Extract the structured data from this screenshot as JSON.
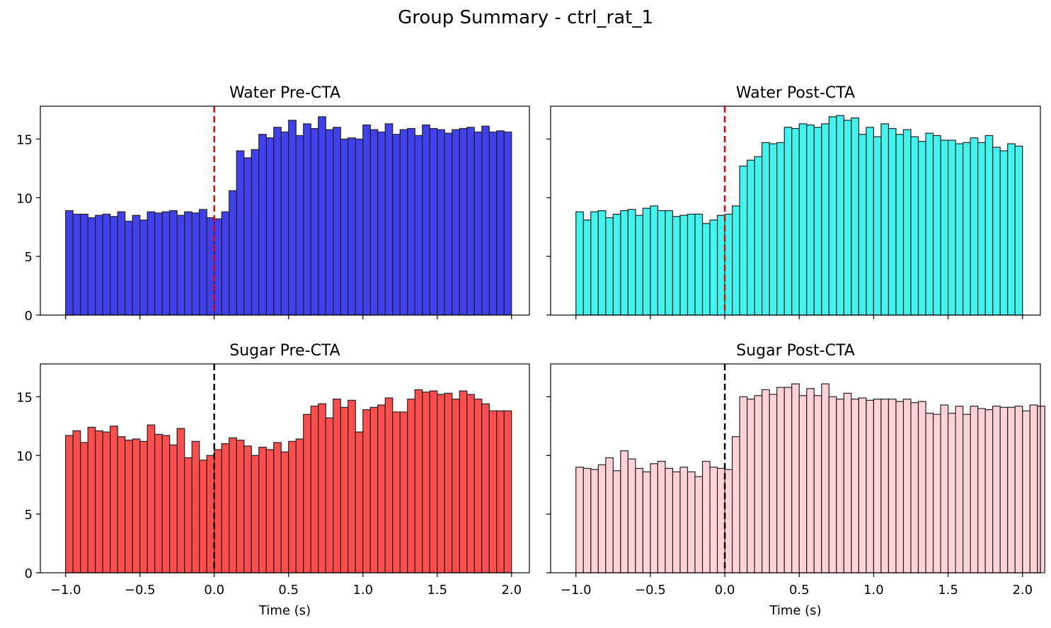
{
  "figure": {
    "title": "Group Summary - ctrl_rat_1"
  },
  "chart_data": [
    {
      "type": "bar",
      "title": "Water Pre-CTA",
      "xlabel": "",
      "ylabel": "",
      "bin_start": -1.0,
      "bin_width": 0.05,
      "values": [
        8.9,
        8.6,
        8.6,
        8.3,
        8.5,
        8.6,
        8.4,
        8.8,
        8.0,
        8.5,
        8.1,
        8.8,
        8.7,
        8.8,
        8.9,
        8.5,
        8.8,
        8.7,
        9.0,
        8.3,
        8.2,
        8.8,
        10.6,
        14.0,
        13.4,
        14.1,
        15.4,
        15.1,
        16.0,
        15.6,
        16.6,
        15.3,
        16.3,
        15.9,
        16.9,
        15.8,
        16.0,
        15.0,
        15.1,
        15.0,
        16.2,
        15.8,
        15.6,
        16.3,
        15.4,
        15.8,
        15.9,
        15.3,
        16.2,
        15.9,
        15.8,
        15.5,
        15.8,
        15.9,
        16.0,
        15.6,
        16.1,
        15.6,
        15.7,
        15.6
      ],
      "color": "#4040ee",
      "stimulus_line": {
        "x": 0.0,
        "color": "#ee0000"
      },
      "xlim": [
        -1.17,
        2.12
      ],
      "ylim": [
        0,
        17.8
      ],
      "x_ticks": [
        "−1.0",
        "−0.5",
        "0.0",
        "0.5",
        "1.0",
        "1.5",
        "2.0"
      ],
      "x_tick_values": [
        -1.0,
        -0.5,
        0.0,
        0.5,
        1.0,
        1.5,
        2.0
      ],
      "show_x_tick_labels": false,
      "y_ticks": [
        "0",
        "5",
        "10",
        "15"
      ],
      "y_tick_values": [
        0,
        5,
        10,
        15
      ],
      "show_y_tick_labels": true
    },
    {
      "type": "bar",
      "title": "Water Post-CTA",
      "xlabel": "",
      "ylabel": "",
      "bin_start": -1.0,
      "bin_width": 0.05,
      "values": [
        8.8,
        8.1,
        8.8,
        8.9,
        8.3,
        8.6,
        8.9,
        9.0,
        8.5,
        9.1,
        9.3,
        8.9,
        8.9,
        8.4,
        8.5,
        8.6,
        8.6,
        7.8,
        8.1,
        8.5,
        8.6,
        9.3,
        12.7,
        13.2,
        13.5,
        14.7,
        14.6,
        14.7,
        16.0,
        15.9,
        16.3,
        16.2,
        16.0,
        16.3,
        16.9,
        17.0,
        16.6,
        16.8,
        15.4,
        16.0,
        15.2,
        16.3,
        15.9,
        15.4,
        15.8,
        15.2,
        14.8,
        15.5,
        15.3,
        14.9,
        14.9,
        14.6,
        14.7,
        15.1,
        14.7,
        15.3,
        14.3,
        14.0,
        14.6,
        14.4
      ],
      "color": "#40f5ee",
      "stimulus_line": {
        "x": 0.0,
        "color": "#ee0000"
      },
      "xlim": [
        -1.17,
        2.12
      ],
      "ylim": [
        0,
        17.8
      ],
      "x_ticks": [
        "−1.0",
        "−0.5",
        "0.0",
        "0.5",
        "1.0",
        "1.5",
        "2.0"
      ],
      "x_tick_values": [
        -1.0,
        -0.5,
        0.0,
        0.5,
        1.0,
        1.5,
        2.0
      ],
      "show_x_tick_labels": false,
      "y_ticks": [
        "0",
        "5",
        "10",
        "15"
      ],
      "y_tick_values": [
        0,
        5,
        10,
        15
      ],
      "show_y_tick_labels": false
    },
    {
      "type": "bar",
      "title": "Sugar Pre-CTA",
      "xlabel": "Time (s)",
      "ylabel": "",
      "bin_start": -1.0,
      "bin_width": 0.05,
      "values": [
        11.7,
        12.1,
        11.1,
        12.4,
        12.1,
        12.0,
        12.5,
        11.6,
        11.3,
        11.4,
        11.2,
        12.6,
        11.8,
        11.7,
        10.9,
        12.3,
        9.8,
        11.2,
        9.6,
        10.0,
        10.5,
        11.0,
        11.5,
        11.3,
        10.8,
        10.0,
        10.7,
        10.5,
        11.1,
        10.3,
        11.2,
        11.4,
        13.5,
        14.2,
        14.4,
        13.2,
        14.8,
        14.1,
        14.7,
        12.0,
        13.9,
        14.1,
        14.3,
        14.9,
        13.7,
        13.7,
        14.8,
        15.6,
        15.4,
        15.5,
        15.2,
        15.3,
        14.8,
        15.5,
        15.2,
        14.8,
        14.4,
        13.8,
        13.8,
        13.8
      ],
      "color": "#fd4d4d",
      "stimulus_line": {
        "x": 0.0,
        "color": "#000000"
      },
      "xlim": [
        -1.17,
        2.12
      ],
      "ylim": [
        0,
        17.8
      ],
      "x_ticks": [
        "−1.0",
        "−0.5",
        "0.0",
        "0.5",
        "1.0",
        "1.5",
        "2.0"
      ],
      "x_tick_values": [
        -1.0,
        -0.5,
        0.0,
        0.5,
        1.0,
        1.5,
        2.0
      ],
      "show_x_tick_labels": true,
      "y_ticks": [
        "0",
        "5",
        "10",
        "15"
      ],
      "y_tick_values": [
        0,
        5,
        10,
        15
      ],
      "show_y_tick_labels": true
    },
    {
      "type": "bar",
      "title": "Sugar Post-CTA",
      "xlabel": "Time (s)",
      "ylabel": "",
      "bin_start": -1.0,
      "bin_width": 0.05,
      "values": [
        9.0,
        8.9,
        8.8,
        9.2,
        9.8,
        8.7,
        10.4,
        9.7,
        8.9,
        8.6,
        9.3,
        9.5,
        8.9,
        8.6,
        9.0,
        8.6,
        8.2,
        9.5,
        9.0,
        8.9,
        8.8,
        11.6,
        15.0,
        14.8,
        15.1,
        15.6,
        15.2,
        15.8,
        15.8,
        16.1,
        15.1,
        15.7,
        15.1,
        16.1,
        15.0,
        14.8,
        15.3,
        14.8,
        14.9,
        14.7,
        14.8,
        14.8,
        14.8,
        14.6,
        14.8,
        14.5,
        14.6,
        13.6,
        13.5,
        14.3,
        13.6,
        14.2,
        13.5,
        14.2,
        14.0,
        13.9,
        14.2,
        14.1,
        14.1,
        14.2,
        13.8,
        14.3,
        14.2
      ],
      "color": "#ffd2d8",
      "stimulus_line": {
        "x": 0.0,
        "color": "#000000"
      },
      "xlim": [
        -1.17,
        2.12
      ],
      "ylim": [
        0,
        17.8
      ],
      "x_ticks": [
        "−1.0",
        "−0.5",
        "0.0",
        "0.5",
        "1.0",
        "1.5",
        "2.0"
      ],
      "x_tick_values": [
        -1.0,
        -0.5,
        0.0,
        0.5,
        1.0,
        1.5,
        2.0
      ],
      "show_x_tick_labels": true,
      "y_ticks": [
        "0",
        "5",
        "10",
        "15"
      ],
      "y_tick_values": [
        0,
        5,
        10,
        15
      ],
      "show_y_tick_labels": false
    }
  ]
}
